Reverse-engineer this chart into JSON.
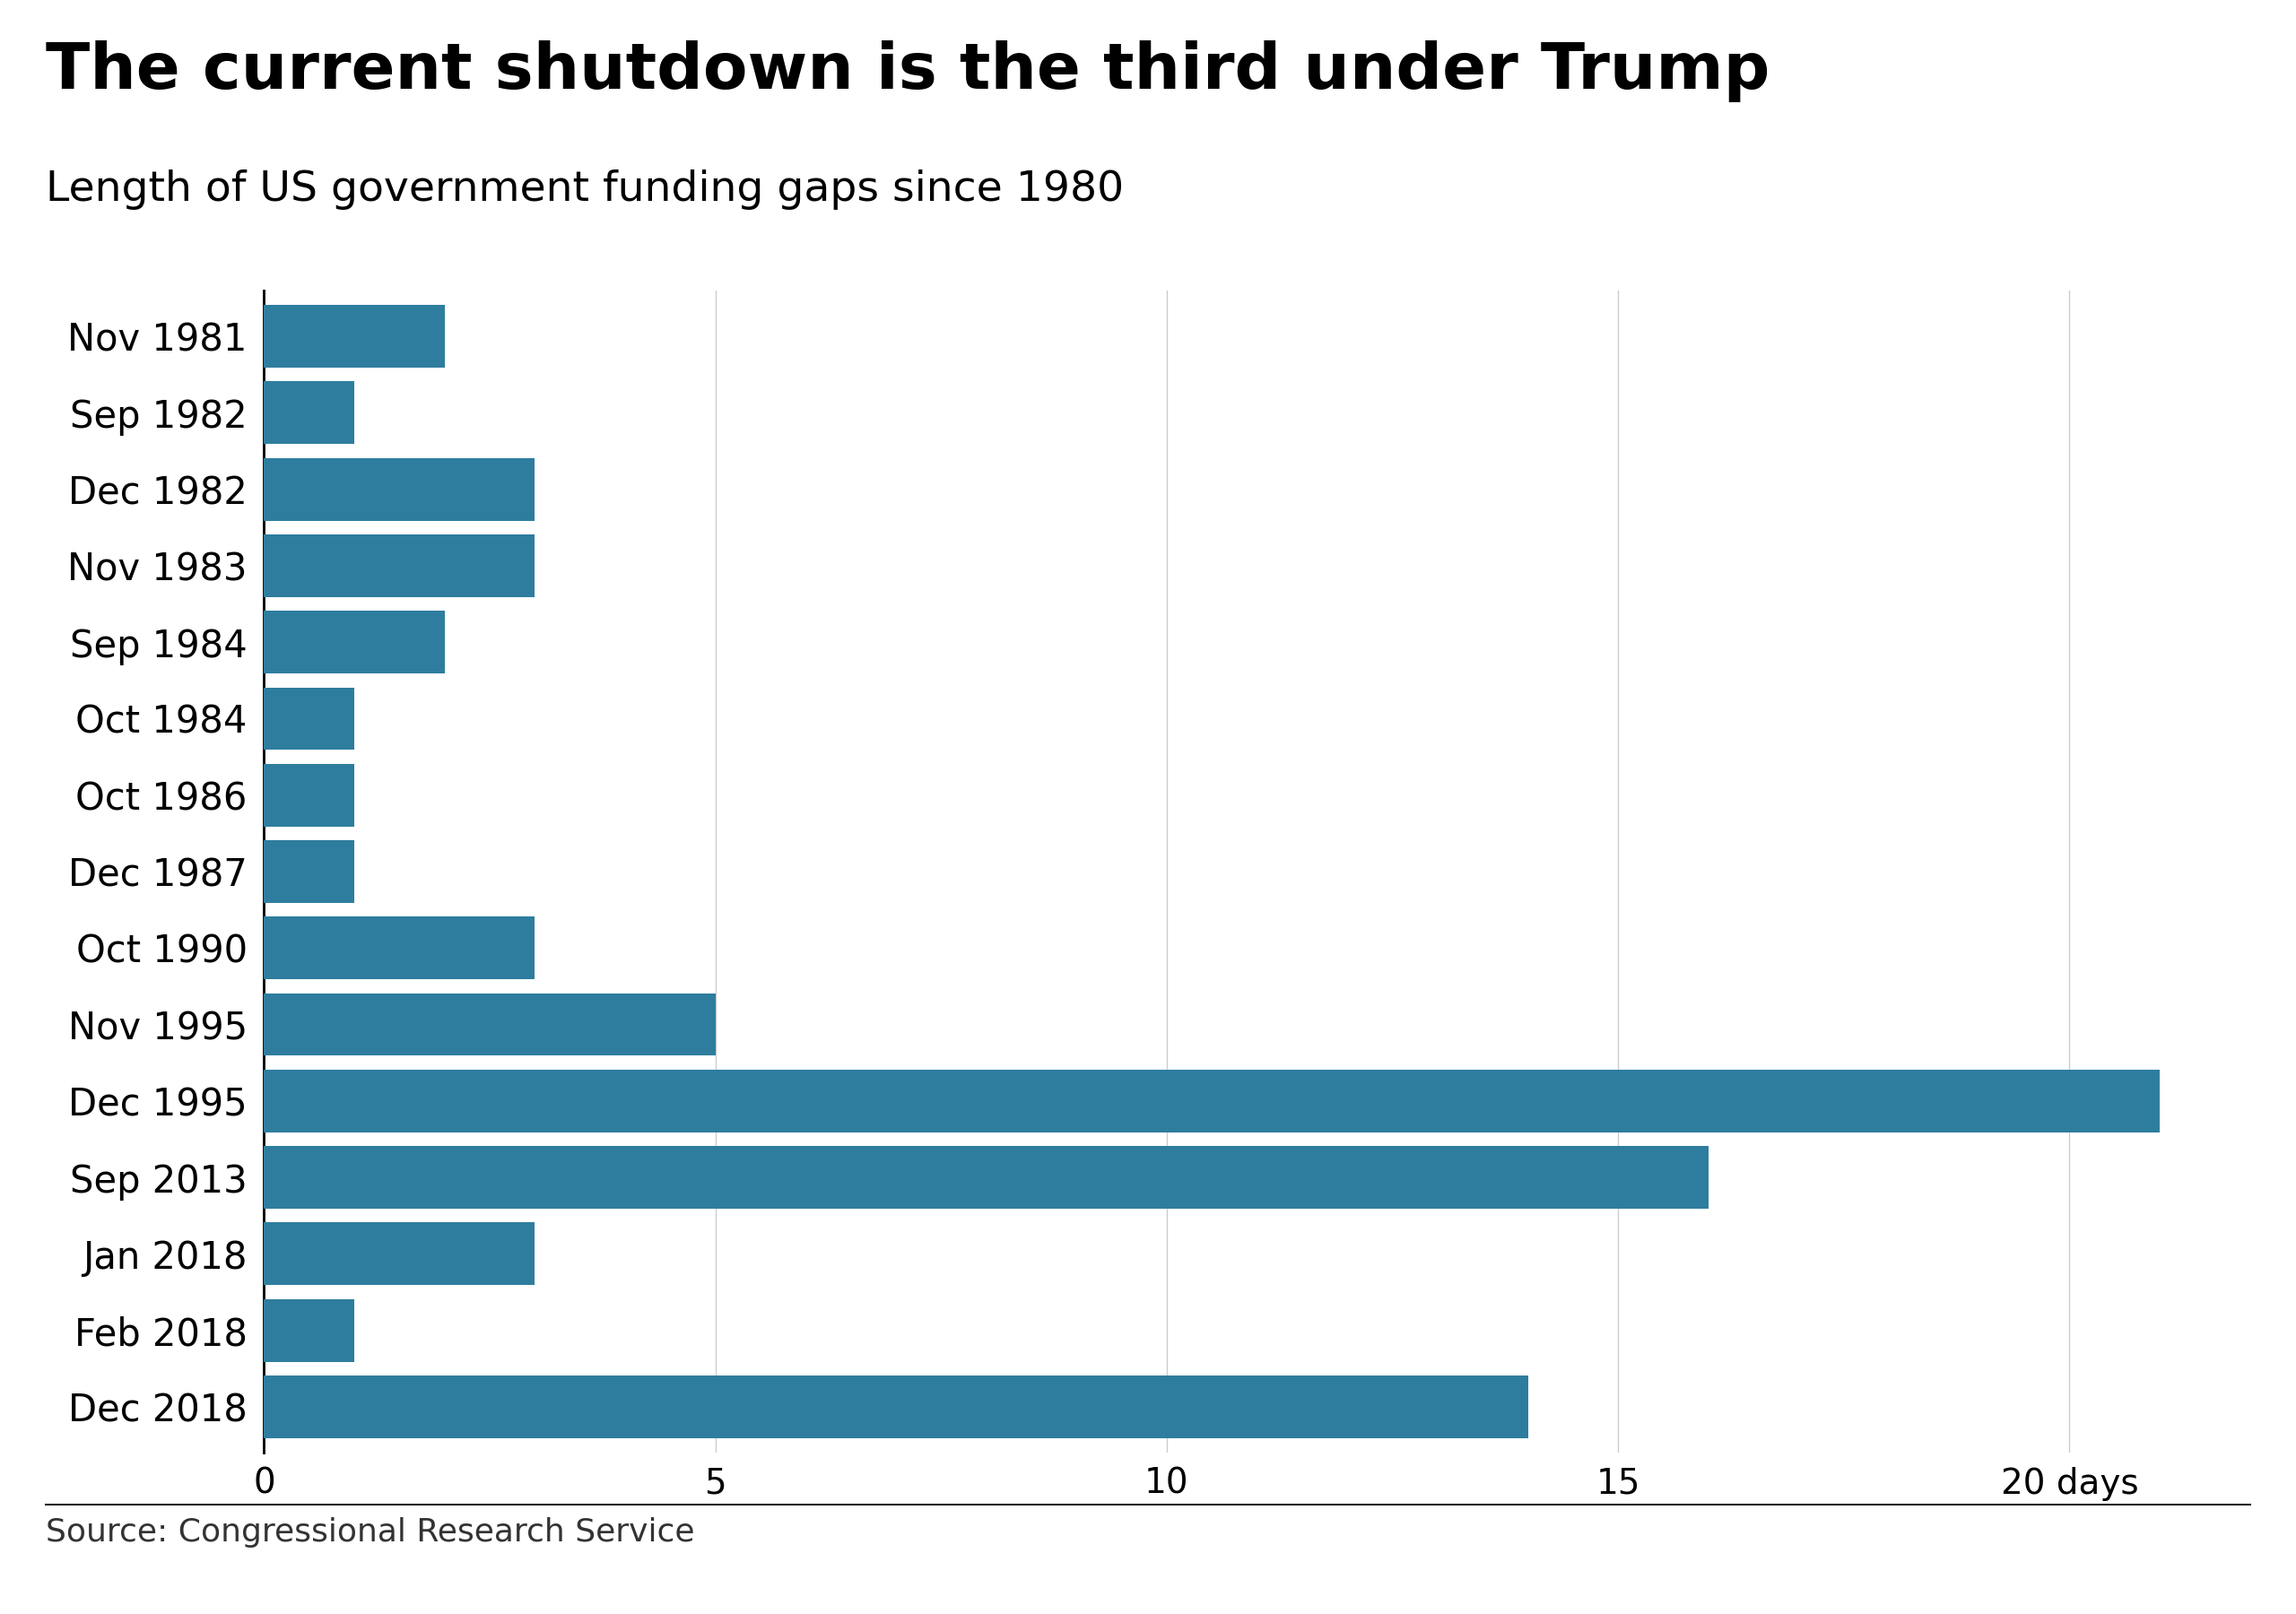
{
  "title": "The current shutdown is the third under Trump",
  "subtitle": "Length of US government funding gaps since 1980",
  "source": "Source: Congressional Research Service",
  "categories": [
    "Nov 1981",
    "Sep 1982",
    "Dec 1982",
    "Nov 1983",
    "Sep 1984",
    "Oct 1984",
    "Oct 1986",
    "Dec 1987",
    "Oct 1990",
    "Nov 1995",
    "Dec 1995",
    "Sep 2013",
    "Jan 2018",
    "Feb 2018",
    "Dec 2018"
  ],
  "values": [
    2,
    1,
    3,
    3,
    2,
    1,
    1,
    1,
    3,
    5,
    21,
    16,
    3,
    1,
    14
  ],
  "bar_color": "#2e7d9e",
  "background_color": "#ffffff",
  "xlim": [
    0,
    22
  ],
  "xticks": [
    0,
    5,
    10,
    15,
    20
  ],
  "xtick_labels": [
    "0",
    "5",
    "10",
    "15",
    "20 days"
  ],
  "title_fontsize": 52,
  "subtitle_fontsize": 34,
  "label_fontsize": 30,
  "tick_fontsize": 28,
  "source_fontsize": 26,
  "bar_height": 0.82,
  "grid_color": "#cccccc",
  "bbc_bg_color": "#555555",
  "bbc_text_color": "#ffffff"
}
